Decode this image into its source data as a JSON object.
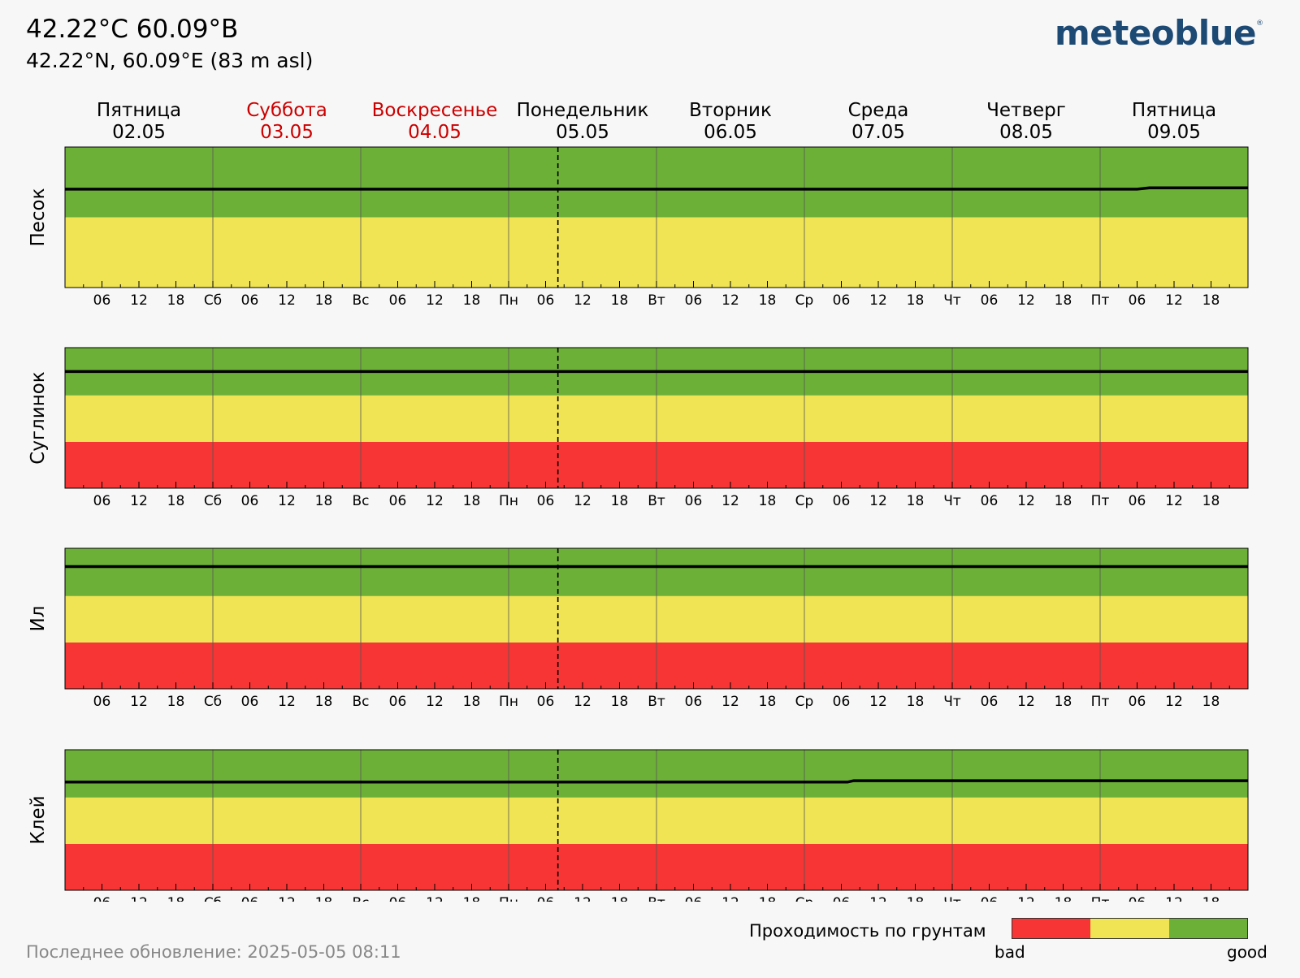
{
  "header": {
    "title": "42.22°C 60.09°B",
    "subtitle": "42.22°N, 60.09°E (83 m asl)",
    "logo": "meteoblue",
    "logo_mark": "®"
  },
  "days": [
    {
      "name": "Пятница",
      "date": "02.05",
      "weekend": false
    },
    {
      "name": "Суббота",
      "date": "03.05",
      "weekend": true
    },
    {
      "name": "Воскресенье",
      "date": "04.05",
      "weekend": true
    },
    {
      "name": "Понедельник",
      "date": "05.05",
      "weekend": false
    },
    {
      "name": "Вторник",
      "date": "06.05",
      "weekend": false
    },
    {
      "name": "Среда",
      "date": "07.05",
      "weekend": false
    },
    {
      "name": "Четверг",
      "date": "08.05",
      "weekend": false
    },
    {
      "name": "Пятница",
      "date": "09.05",
      "weekend": false
    }
  ],
  "x_tick_labels": [
    "",
    "06",
    "12",
    "18",
    "Сб",
    "06",
    "12",
    "18",
    "Вс",
    "06",
    "12",
    "18",
    "Пн",
    "06",
    "12",
    "18",
    "Вт",
    "06",
    "12",
    "18",
    "Ср",
    "06",
    "12",
    "18",
    "Чт",
    "06",
    "12",
    "18",
    "Пт",
    "06",
    "12",
    "18"
  ],
  "colors": {
    "bad": "#f73535",
    "medium": "#f0e454",
    "good": "#6db038",
    "weekend_text": "#cc0000",
    "line": "#000000",
    "background": "#f7f7f7"
  },
  "chart_data": [
    {
      "type": "line",
      "ylabel": "Песок",
      "x_unit": "hours since 02.05 00:00",
      "xlim": [
        0,
        192
      ],
      "ylim": [
        0,
        1
      ],
      "zones": [
        {
          "level": "medium",
          "from": 0,
          "to": 0.5
        },
        {
          "level": "good",
          "from": 0.5,
          "to": 1
        }
      ],
      "now_marker": 80,
      "series": [
        {
          "x": [
            0,
            174,
            176,
            192
          ],
          "y": [
            0.7,
            0.7,
            0.71,
            0.71
          ]
        }
      ]
    },
    {
      "type": "line",
      "ylabel": "Суглинок",
      "x_unit": "hours since 02.05 00:00",
      "xlim": [
        0,
        192
      ],
      "ylim": [
        0,
        1
      ],
      "zones": [
        {
          "level": "bad",
          "from": 0,
          "to": 0.33
        },
        {
          "level": "medium",
          "from": 0.33,
          "to": 0.66
        },
        {
          "level": "good",
          "from": 0.66,
          "to": 1
        }
      ],
      "now_marker": 80,
      "series": [
        {
          "x": [
            0,
            192
          ],
          "y": [
            0.83,
            0.83
          ]
        }
      ]
    },
    {
      "type": "line",
      "ylabel": "Ил",
      "x_unit": "hours since 02.05 00:00",
      "xlim": [
        0,
        192
      ],
      "ylim": [
        0,
        1
      ],
      "zones": [
        {
          "level": "bad",
          "from": 0,
          "to": 0.33
        },
        {
          "level": "medium",
          "from": 0.33,
          "to": 0.66
        },
        {
          "level": "good",
          "from": 0.66,
          "to": 1
        }
      ],
      "now_marker": 80,
      "series": [
        {
          "x": [
            0,
            192
          ],
          "y": [
            0.87,
            0.87
          ]
        }
      ]
    },
    {
      "type": "line",
      "ylabel": "Клей",
      "x_unit": "hours since 02.05 00:00",
      "xlim": [
        0,
        192
      ],
      "ylim": [
        0,
        1
      ],
      "zones": [
        {
          "level": "bad",
          "from": 0,
          "to": 0.33
        },
        {
          "level": "medium",
          "from": 0.33,
          "to": 0.66
        },
        {
          "level": "good",
          "from": 0.66,
          "to": 1
        }
      ],
      "now_marker": 80,
      "series": [
        {
          "x": [
            0,
            127,
            128,
            192
          ],
          "y": [
            0.77,
            0.77,
            0.78,
            0.78
          ]
        }
      ]
    }
  ],
  "legend": {
    "title": "Проходимость по грунтам",
    "bad_label": "bad",
    "good_label": "good"
  },
  "footer": {
    "update": "Последнее обновление: 2025-05-05 08:11"
  }
}
